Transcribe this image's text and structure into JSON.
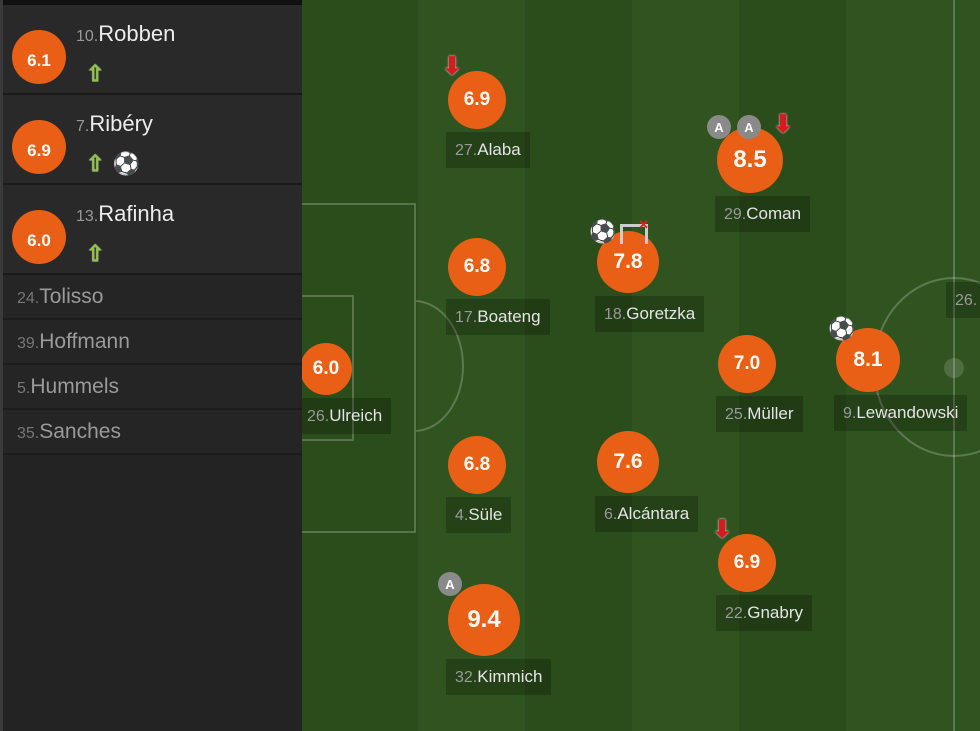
{
  "substitutes_used": [
    {
      "number": "10.",
      "name": "Robben",
      "rating": "6.1",
      "events": [
        "sub-on"
      ]
    },
    {
      "number": "7.",
      "name": "Ribéry",
      "rating": "6.9",
      "events": [
        "sub-on",
        "goal"
      ]
    },
    {
      "number": "13.",
      "name": "Rafinha",
      "rating": "6.0",
      "events": [
        "sub-on"
      ]
    }
  ],
  "bench": [
    {
      "number": "24.",
      "name": "Tolisso"
    },
    {
      "number": "39.",
      "name": "Hoffmann"
    },
    {
      "number": "5.",
      "name": "Hummels"
    },
    {
      "number": "35.",
      "name": "Sanches"
    }
  ],
  "players": [
    {
      "number": "27.",
      "name": "Alaba",
      "rating": "6.9",
      "events": [
        "sub-off"
      ]
    },
    {
      "number": "29.",
      "name": "Coman",
      "rating": "8.5",
      "events": [
        "assist",
        "assist",
        "sub-off"
      ]
    },
    {
      "number": "17.",
      "name": "Boateng",
      "rating": "6.8",
      "events": []
    },
    {
      "number": "18.",
      "name": "Goretzka",
      "rating": "7.8",
      "events": [
        "goal",
        "missed-chance"
      ]
    },
    {
      "number": "26.",
      "name": "Ulreich",
      "rating": "6.0",
      "events": []
    },
    {
      "number": "25.",
      "name": "Müller",
      "rating": "7.0",
      "events": []
    },
    {
      "number": "9.",
      "name": "Lewandowski",
      "rating": "8.1",
      "events": [
        "goal"
      ]
    },
    {
      "number": "4.",
      "name": "Süle",
      "rating": "6.8",
      "events": []
    },
    {
      "number": "6.",
      "name": "Alcántara",
      "rating": "7.6",
      "events": []
    },
    {
      "number": "22.",
      "name": "Gnabry",
      "rating": "6.9",
      "events": [
        "sub-off"
      ]
    },
    {
      "number": "32.",
      "name": "Kimmich",
      "rating": "9.4",
      "events": [
        "assist"
      ]
    },
    {
      "number": "26.",
      "name": "",
      "rating": "",
      "events": []
    }
  ],
  "icons": {
    "assist": "A",
    "goal": "⚽",
    "sub_on": "⇧",
    "sub_off": "⬇",
    "missed": "✕"
  },
  "colors": {
    "rating": "#e95f15",
    "sub_on": "#8dc63f",
    "sub_off": "#d71920",
    "pitch": "#2a4a1a"
  }
}
